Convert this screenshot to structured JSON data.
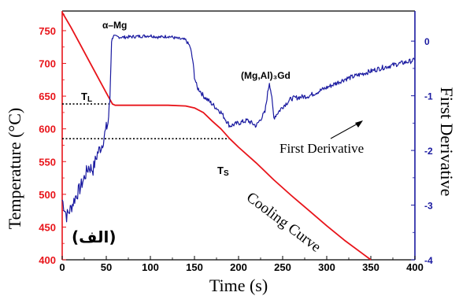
{
  "chart_data": {
    "type": "line",
    "xlabel": "Time (s)",
    "ylabel_left": "Temperature (°C)",
    "ylabel_right": "First Derivative",
    "xlim": [
      0,
      400
    ],
    "ylim_left": [
      400,
      780
    ],
    "ylim_right": [
      -4,
      0.55
    ],
    "x_ticks": [
      "0",
      "50",
      "100",
      "150",
      "200",
      "250",
      "300",
      "350",
      "400"
    ],
    "y_ticks_left": [
      "400",
      "450",
      "500",
      "550",
      "600",
      "650",
      "700",
      "750"
    ],
    "y_ticks_right": [
      "-4",
      "-3",
      "-2",
      "-1",
      "0"
    ],
    "series": [
      {
        "name": "Cooling Curve",
        "axis": "left",
        "color": "#e8141a",
        "x": [
          0,
          10,
          20,
          30,
          40,
          50,
          57,
          60,
          80,
          100,
          120,
          140,
          150,
          160,
          170,
          180,
          190,
          200,
          220,
          240,
          260,
          280,
          300,
          320,
          340,
          350
        ],
        "y": [
          778,
          755,
          730,
          705,
          680,
          655,
          638,
          636,
          636,
          636,
          636,
          635,
          632,
          625,
          612,
          600,
          585,
          572,
          548,
          522,
          498,
          475,
          452,
          430,
          410,
          400
        ]
      },
      {
        "name": "First Derivative",
        "axis": "right",
        "color": "#1a1aa0",
        "x": [
          0,
          5,
          10,
          15,
          20,
          25,
          30,
          35,
          40,
          45,
          50,
          52,
          54,
          56,
          58,
          60,
          70,
          80,
          90,
          100,
          110,
          120,
          130,
          140,
          145,
          148,
          150,
          153,
          156,
          160,
          170,
          180,
          190,
          200,
          210,
          220,
          230,
          233,
          235,
          237,
          240,
          250,
          260,
          280,
          300,
          320,
          340,
          360,
          380,
          400
        ],
        "y": [
          -2.9,
          -3.2,
          -3.05,
          -2.85,
          -2.7,
          -2.5,
          -2.3,
          -2.35,
          -2.05,
          -1.9,
          -1.6,
          -1.5,
          -1.1,
          0.0,
          0.1,
          0.08,
          0.07,
          0.08,
          0.09,
          0.1,
          0.07,
          0.09,
          0.05,
          0.02,
          -0.1,
          -0.35,
          -0.65,
          -0.85,
          -0.9,
          -1.0,
          -1.15,
          -1.3,
          -1.55,
          -1.5,
          -1.45,
          -1.55,
          -1.3,
          -0.95,
          -0.75,
          -0.95,
          -1.4,
          -1.2,
          -1.05,
          -1.0,
          -0.85,
          -0.7,
          -0.6,
          -0.5,
          -0.42,
          -0.35
        ]
      }
    ],
    "reference_lines": [
      {
        "label": "TL",
        "value": 638,
        "x_end": 57
      },
      {
        "label": "TS",
        "value": 585,
        "x_end": 190
      }
    ],
    "annotations": {
      "alpha_mg": "α–Mg",
      "mgalgd": "(Mg,Al)₃Gd",
      "tl_main": "T",
      "tl_sub": "L",
      "ts_main": "T",
      "ts_sub": "S",
      "cooling_curve": "Cooling Curve",
      "first_derivative": "First Derivative",
      "panel_label": "(الف)"
    },
    "colors": {
      "left_axis": "#e8141a",
      "right_axis": "#1a1aa0"
    }
  }
}
